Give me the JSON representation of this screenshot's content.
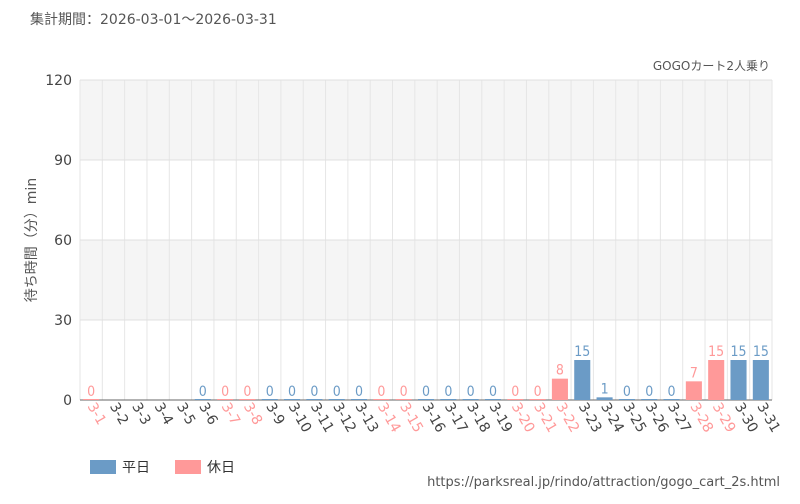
{
  "chart_data": {
    "type": "bar",
    "header": "集計期間：2026-03-01～2026-03-31",
    "subtitle": "GOGOカート2人乗り",
    "y_label": "待ち時間（分）min",
    "source": "https://parksreal.jp/rindo/attraction/gogo_cart_2s.html",
    "categories": [
      "3-1",
      "3-2",
      "3-3",
      "3-4",
      "3-5",
      "3-6",
      "3-7",
      "3-8",
      "3-9",
      "3-10",
      "3-11",
      "3-12",
      "3-13",
      "3-14",
      "3-15",
      "3-16",
      "3-17",
      "3-18",
      "3-19",
      "3-20",
      "3-21",
      "3-22",
      "3-23",
      "3-24",
      "3-25",
      "3-26",
      "3-27",
      "3-28",
      "3-29",
      "3-30",
      "3-31"
    ],
    "series": [
      {
        "name": "平日",
        "color": "#6b9bc6",
        "values": [
          null,
          null,
          null,
          null,
          null,
          0,
          null,
          null,
          0,
          0,
          0,
          0,
          0,
          null,
          null,
          0,
          0,
          0,
          0,
          null,
          null,
          null,
          15,
          1,
          0,
          0,
          0,
          null,
          null,
          15,
          15
        ]
      },
      {
        "name": "休日",
        "color": "#ff9999",
        "values": [
          0,
          null,
          null,
          null,
          null,
          null,
          0,
          0,
          null,
          null,
          null,
          null,
          null,
          0,
          0,
          null,
          null,
          null,
          null,
          0,
          0,
          8,
          null,
          null,
          null,
          null,
          null,
          7,
          15,
          null,
          null
        ]
      }
    ],
    "ylim": [
      0,
      120
    ],
    "yticks": [
      0,
      30,
      60,
      90,
      120
    ],
    "grid": true,
    "legend": "bottom-left"
  }
}
